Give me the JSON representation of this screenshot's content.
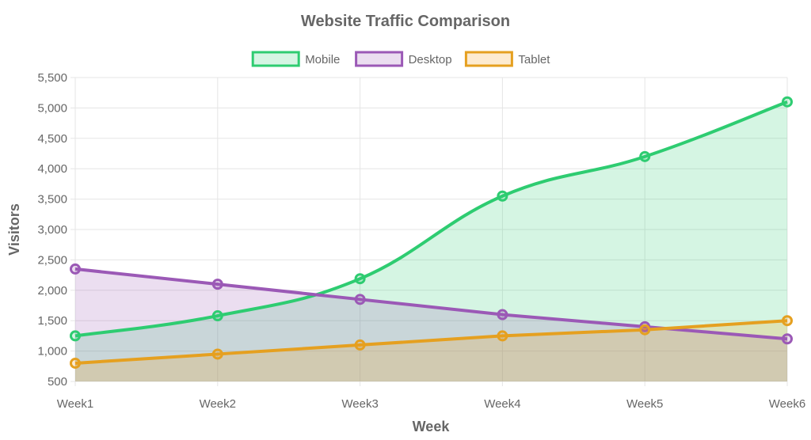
{
  "chart_data": {
    "type": "area",
    "title": "Website Traffic Comparison",
    "xlabel": "Week",
    "ylabel": "Visitors",
    "categories": [
      "Week1",
      "Week2",
      "Week3",
      "Week4",
      "Week5",
      "Week6"
    ],
    "ylim": [
      500,
      5500
    ],
    "yticks": [
      500,
      1000,
      1500,
      2000,
      2500,
      3000,
      3500,
      4000,
      4500,
      5000,
      5500
    ],
    "ytick_labels": [
      "500",
      "1,000",
      "1,500",
      "2,000",
      "2,500",
      "3,000",
      "3,500",
      "4,000",
      "4,500",
      "5,000",
      "5,500"
    ],
    "grid": true,
    "legend": "top-center",
    "series": [
      {
        "name": "Mobile",
        "values": [
          1250,
          1580,
          2190,
          3550,
          4200,
          5100
        ],
        "color": "#2ecc71",
        "fill": "rgba(46,204,113,0.2)",
        "curve": "smooth"
      },
      {
        "name": "Desktop",
        "values": [
          2350,
          2100,
          1850,
          1600,
          1400,
          1200
        ],
        "color": "#9b59b6",
        "fill": "rgba(155,89,182,0.2)",
        "curve": "straight"
      },
      {
        "name": "Tablet",
        "values": [
          800,
          950,
          1100,
          1250,
          1350,
          1500
        ],
        "color": "#e5a020",
        "fill": "rgba(243,156,18,0.2)",
        "curve": "straight"
      }
    ]
  }
}
